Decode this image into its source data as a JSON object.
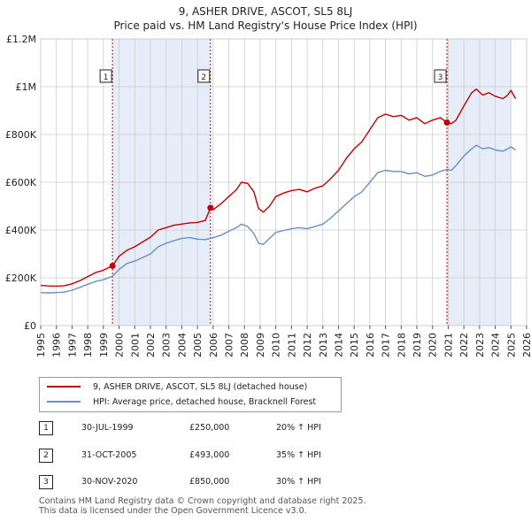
{
  "title_line1": "9, ASHER DRIVE, ASCOT, SL5 8LJ",
  "title_line2": "Price paid vs. HM Land Registry's House Price Index (HPI)",
  "colors": {
    "price": "#c00000",
    "hpi": "#6a8fc4",
    "shade": "#e6ecf8"
  },
  "chart_data": {
    "type": "line",
    "xlabel": "",
    "ylabel": "",
    "xlim": [
      1995,
      2026
    ],
    "ylim": [
      0,
      1200000
    ],
    "x_ticks": [
      "1995",
      "1996",
      "1997",
      "1998",
      "1999",
      "2000",
      "2001",
      "2002",
      "2003",
      "2004",
      "2005",
      "2006",
      "2007",
      "2008",
      "2009",
      "2010",
      "2011",
      "2012",
      "2013",
      "2014",
      "2015",
      "2016",
      "2017",
      "2018",
      "2019",
      "2020",
      "2021",
      "2022",
      "2023",
      "2024",
      "2025",
      "2026"
    ],
    "y_ticks": [
      {
        "value": 0,
        "label": "£0"
      },
      {
        "value": 200000,
        "label": "£200K"
      },
      {
        "value": 400000,
        "label": "£400K"
      },
      {
        "value": 600000,
        "label": "£600K"
      },
      {
        "value": 800000,
        "label": "£800K"
      },
      {
        "value": 1000000,
        "label": "£1M"
      },
      {
        "value": 1200000,
        "label": "£1.2M"
      }
    ],
    "shaded_periods": [
      [
        1999.58,
        2005.83
      ],
      [
        2020.92,
        2025.0
      ]
    ],
    "series": [
      {
        "name": "9, ASHER DRIVE, ASCOT, SL5 8LJ (detached house)",
        "color": "#c00000",
        "points": [
          [
            1995.0,
            168000
          ],
          [
            1995.5,
            166000
          ],
          [
            1996.0,
            165000
          ],
          [
            1996.5,
            167000
          ],
          [
            1997.0,
            175000
          ],
          [
            1997.5,
            188000
          ],
          [
            1998.0,
            205000
          ],
          [
            1998.5,
            222000
          ],
          [
            1999.0,
            232000
          ],
          [
            1999.58,
            250000
          ],
          [
            2000.0,
            290000
          ],
          [
            2000.5,
            315000
          ],
          [
            2001.0,
            330000
          ],
          [
            2001.5,
            350000
          ],
          [
            2002.0,
            370000
          ],
          [
            2002.5,
            400000
          ],
          [
            2003.0,
            410000
          ],
          [
            2003.5,
            420000
          ],
          [
            2004.0,
            425000
          ],
          [
            2004.5,
            430000
          ],
          [
            2005.0,
            432000
          ],
          [
            2005.5,
            440000
          ],
          [
            2005.83,
            493000
          ],
          [
            2006.0,
            485000
          ],
          [
            2006.5,
            510000
          ],
          [
            2007.0,
            540000
          ],
          [
            2007.5,
            570000
          ],
          [
            2007.8,
            600000
          ],
          [
            2008.2,
            595000
          ],
          [
            2008.6,
            560000
          ],
          [
            2008.9,
            490000
          ],
          [
            2009.2,
            475000
          ],
          [
            2009.6,
            500000
          ],
          [
            2010.0,
            540000
          ],
          [
            2010.5,
            555000
          ],
          [
            2011.0,
            565000
          ],
          [
            2011.5,
            570000
          ],
          [
            2012.0,
            560000
          ],
          [
            2012.5,
            575000
          ],
          [
            2013.0,
            585000
          ],
          [
            2013.5,
            615000
          ],
          [
            2014.0,
            650000
          ],
          [
            2014.5,
            700000
          ],
          [
            2015.0,
            740000
          ],
          [
            2015.5,
            770000
          ],
          [
            2016.0,
            820000
          ],
          [
            2016.5,
            870000
          ],
          [
            2017.0,
            885000
          ],
          [
            2017.5,
            875000
          ],
          [
            2018.0,
            880000
          ],
          [
            2018.5,
            860000
          ],
          [
            2019.0,
            870000
          ],
          [
            2019.5,
            845000
          ],
          [
            2020.0,
            860000
          ],
          [
            2020.5,
            870000
          ],
          [
            2020.92,
            850000
          ],
          [
            2021.2,
            845000
          ],
          [
            2021.5,
            860000
          ],
          [
            2022.0,
            920000
          ],
          [
            2022.5,
            975000
          ],
          [
            2022.8,
            990000
          ],
          [
            2023.2,
            965000
          ],
          [
            2023.6,
            975000
          ],
          [
            2024.0,
            960000
          ],
          [
            2024.5,
            950000
          ],
          [
            2024.8,
            965000
          ],
          [
            2025.0,
            985000
          ],
          [
            2025.3,
            950000
          ]
        ]
      },
      {
        "name": "HPI: Average price, detached house, Bracknell Forest",
        "color": "#6a8fc4",
        "points": [
          [
            1995.0,
            138000
          ],
          [
            1995.5,
            137000
          ],
          [
            1996.0,
            138000
          ],
          [
            1996.5,
            140000
          ],
          [
            1997.0,
            148000
          ],
          [
            1997.5,
            160000
          ],
          [
            1998.0,
            173000
          ],
          [
            1998.5,
            185000
          ],
          [
            1999.0,
            192000
          ],
          [
            1999.58,
            207000
          ],
          [
            2000.0,
            235000
          ],
          [
            2000.5,
            260000
          ],
          [
            2001.0,
            270000
          ],
          [
            2001.5,
            285000
          ],
          [
            2002.0,
            300000
          ],
          [
            2002.5,
            330000
          ],
          [
            2003.0,
            345000
          ],
          [
            2003.5,
            355000
          ],
          [
            2004.0,
            365000
          ],
          [
            2004.5,
            368000
          ],
          [
            2005.0,
            362000
          ],
          [
            2005.5,
            360000
          ],
          [
            2005.83,
            365000
          ],
          [
            2006.0,
            368000
          ],
          [
            2006.5,
            378000
          ],
          [
            2007.0,
            395000
          ],
          [
            2007.5,
            410000
          ],
          [
            2007.8,
            425000
          ],
          [
            2008.2,
            415000
          ],
          [
            2008.6,
            385000
          ],
          [
            2008.9,
            345000
          ],
          [
            2009.2,
            340000
          ],
          [
            2009.6,
            365000
          ],
          [
            2010.0,
            390000
          ],
          [
            2010.5,
            398000
          ],
          [
            2011.0,
            405000
          ],
          [
            2011.5,
            410000
          ],
          [
            2012.0,
            405000
          ],
          [
            2012.5,
            415000
          ],
          [
            2013.0,
            425000
          ],
          [
            2013.5,
            450000
          ],
          [
            2014.0,
            480000
          ],
          [
            2014.5,
            510000
          ],
          [
            2015.0,
            540000
          ],
          [
            2015.5,
            560000
          ],
          [
            2016.0,
            600000
          ],
          [
            2016.5,
            640000
          ],
          [
            2017.0,
            650000
          ],
          [
            2017.5,
            645000
          ],
          [
            2018.0,
            645000
          ],
          [
            2018.5,
            635000
          ],
          [
            2019.0,
            640000
          ],
          [
            2019.5,
            625000
          ],
          [
            2020.0,
            630000
          ],
          [
            2020.5,
            645000
          ],
          [
            2020.92,
            654000
          ],
          [
            2021.2,
            650000
          ],
          [
            2021.5,
            670000
          ],
          [
            2022.0,
            710000
          ],
          [
            2022.5,
            740000
          ],
          [
            2022.8,
            755000
          ],
          [
            2023.2,
            740000
          ],
          [
            2023.6,
            745000
          ],
          [
            2024.0,
            735000
          ],
          [
            2024.5,
            730000
          ],
          [
            2024.8,
            740000
          ],
          [
            2025.0,
            748000
          ],
          [
            2025.3,
            735000
          ]
        ]
      }
    ],
    "sales": [
      {
        "label": "1",
        "x": 1999.58,
        "y": 250000
      },
      {
        "label": "2",
        "x": 2005.83,
        "y": 493000
      },
      {
        "label": "3",
        "x": 2020.92,
        "y": 850000
      }
    ]
  },
  "legend": {
    "price_label": "9, ASHER DRIVE, ASCOT, SL5 8LJ (detached house)",
    "hpi_label": "HPI: Average price, detached house, Bracknell Forest"
  },
  "transactions": [
    {
      "num": "1",
      "date": "30-JUL-1999",
      "price": "£250,000",
      "hpi": "20% ↑ HPI"
    },
    {
      "num": "2",
      "date": "31-OCT-2005",
      "price": "£493,000",
      "hpi": "35% ↑ HPI"
    },
    {
      "num": "3",
      "date": "30-NOV-2020",
      "price": "£850,000",
      "hpi": "30% ↑ HPI"
    }
  ],
  "footer": {
    "line1": "Contains HM Land Registry data © Crown copyright and database right 2025.",
    "line2": "This data is licensed under the Open Government Licence v3.0."
  }
}
